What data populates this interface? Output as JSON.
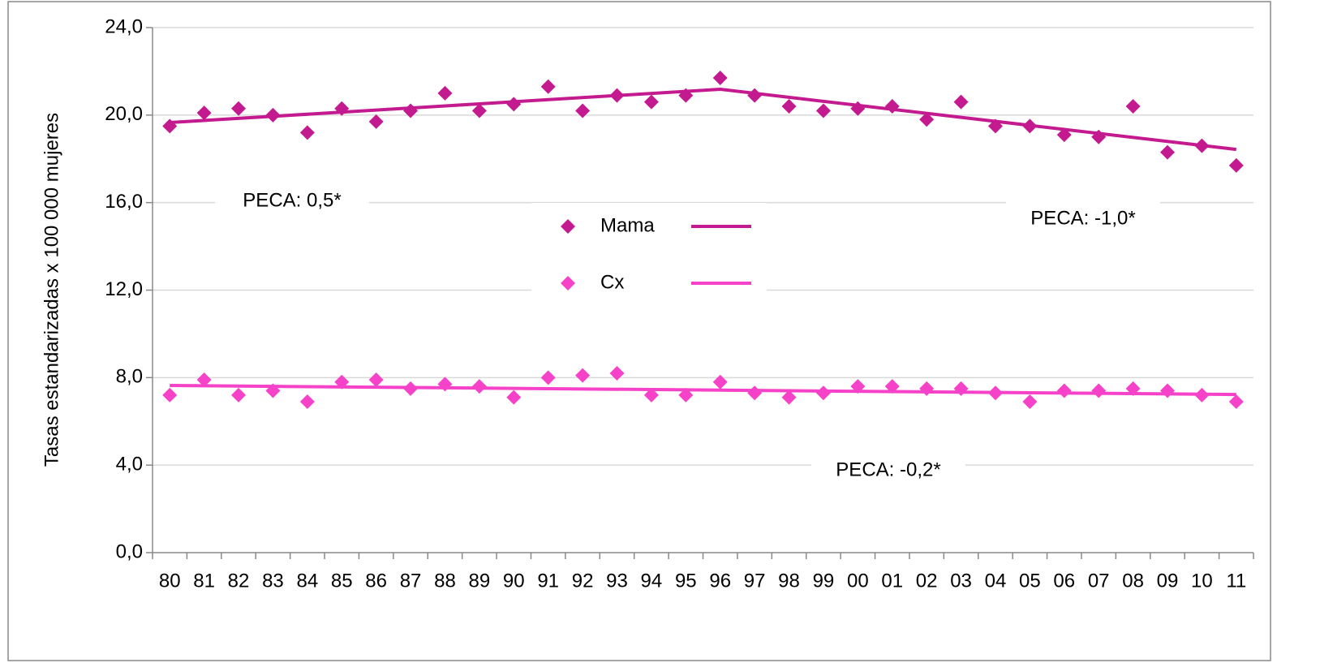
{
  "chart_data": {
    "type": "scatter",
    "y_label": "Tasas estandarizadas x 100 000 mujeres",
    "categories": [
      "80",
      "81",
      "82",
      "83",
      "84",
      "85",
      "86",
      "87",
      "88",
      "89",
      "90",
      "91",
      "92",
      "93",
      "94",
      "95",
      "96",
      "97",
      "98",
      "99",
      "00",
      "01",
      "02",
      "03",
      "04",
      "05",
      "06",
      "07",
      "08",
      "09",
      "10",
      "11"
    ],
    "series": [
      {
        "name": "Mama",
        "color": "#c41a8f",
        "values": [
          19.5,
          20.1,
          20.3,
          20.0,
          19.2,
          20.3,
          19.7,
          20.2,
          21.0,
          20.2,
          20.5,
          21.3,
          20.2,
          20.9,
          20.6,
          20.9,
          21.7,
          20.9,
          20.4,
          20.2,
          20.3,
          20.4,
          19.8,
          20.6,
          19.5,
          19.5,
          19.1,
          19.0,
          20.4,
          18.3,
          18.6,
          17.7
        ],
        "trend": {
          "categories": [
            "80",
            "96",
            "11"
          ],
          "values": [
            19.66,
            21.18,
            18.43
          ]
        }
      },
      {
        "name": "Cx",
        "color": "#f542c8",
        "values": [
          7.2,
          7.9,
          7.2,
          7.4,
          6.9,
          7.8,
          7.9,
          7.5,
          7.7,
          7.6,
          7.1,
          8.0,
          8.1,
          8.2,
          7.2,
          7.2,
          7.8,
          7.3,
          7.1,
          7.3,
          7.6,
          7.6,
          7.5,
          7.5,
          7.3,
          6.9,
          7.4,
          7.4,
          7.5,
          7.4,
          7.2,
          6.9
        ],
        "trend": {
          "categories": [
            "80",
            "11"
          ],
          "values": [
            7.64,
            7.23
          ]
        }
      }
    ],
    "annotations": [
      "PECA: 0,5*",
      "PECA: -1,0*",
      "PECA: -0,2*"
    ],
    "ylim": [
      0,
      24
    ],
    "yticks": [
      {
        "value": 0,
        "label": "0,0"
      },
      {
        "value": 4,
        "label": "4,0"
      },
      {
        "value": 8,
        "label": "8,0"
      },
      {
        "value": 12,
        "label": "12,0"
      },
      {
        "value": 16,
        "label": "16,0"
      },
      {
        "value": 20,
        "label": "20,0"
      },
      {
        "value": 24,
        "label": "24,0"
      }
    ],
    "grid": true
  }
}
